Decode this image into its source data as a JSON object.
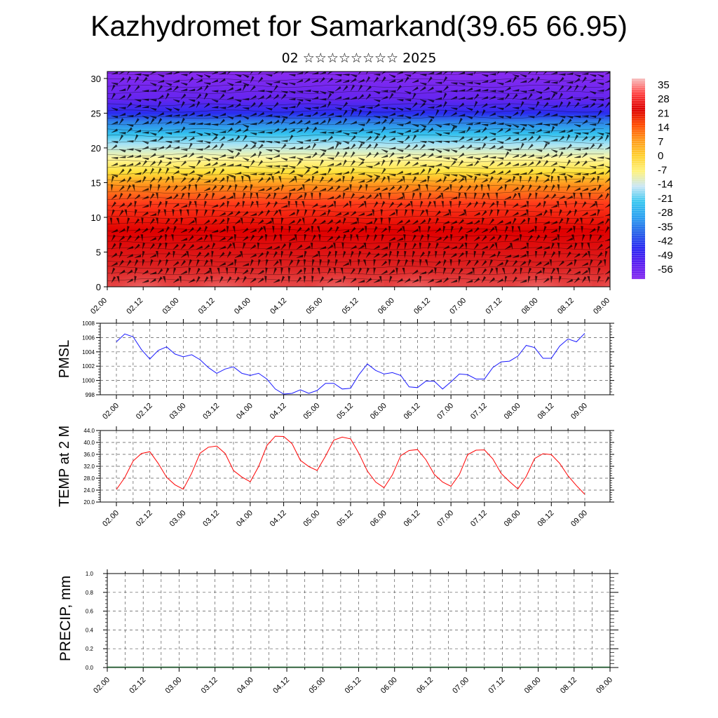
{
  "title": "Kazhydromet for Samarkand(39.65 66.95)",
  "subtitle": "02 ☆☆☆☆☆☆☆☆ 2025",
  "time_labels": [
    "02.00",
    "02.12",
    "03.00",
    "03.12",
    "04.00",
    "04.12",
    "05.00",
    "05.12",
    "06.00",
    "06.12",
    "07.00",
    "07.12",
    "08.00",
    "08.12",
    "09.00"
  ],
  "colors": {
    "pmsl_line": "#1a1aff",
    "temp_line": "#ff0000",
    "precip_line": "#1a5c2a"
  },
  "chart_data": [
    {
      "type": "heatmap",
      "name": "vertical cross-section",
      "title": "",
      "ylim": [
        0,
        31
      ],
      "y_ticks": [
        0,
        5,
        10,
        15,
        20,
        25,
        30
      ],
      "x_ticks": [
        "02.00",
        "02.12",
        "03.00",
        "03.12",
        "04.00",
        "04.12",
        "05.00",
        "05.12",
        "06.00",
        "06.12",
        "07.00",
        "07.12",
        "08.00",
        "08.12",
        "09.00"
      ],
      "colorbar_labels": [
        "35",
        "28",
        "21",
        "14",
        "7",
        "0",
        "-7",
        "-14",
        "-21",
        "-28",
        "-35",
        "-42",
        "-49",
        "-56"
      ],
      "colorbar_colors": [
        "#f7c0c0",
        "#ff4040",
        "#dc0000",
        "#ff4a00",
        "#ff9a1a",
        "#ffd030",
        "#fff27a",
        "#c9e6f5",
        "#39c7f0",
        "#2b9ff0",
        "#2460e8",
        "#2a28f2",
        "#5a1ef0",
        "#8428f0"
      ],
      "profile": [
        {
          "z": 0,
          "color": "#e64a4a"
        },
        {
          "z": 3,
          "color": "#dc2020"
        },
        {
          "z": 8,
          "color": "#e00000"
        },
        {
          "z": 12,
          "color": "#ff3a1a"
        },
        {
          "z": 14.5,
          "color": "#ff8c1a"
        },
        {
          "z": 16.5,
          "color": "#ffe23a"
        },
        {
          "z": 18.5,
          "color": "#fff7a0"
        },
        {
          "z": 20.5,
          "color": "#a9e3f5"
        },
        {
          "z": 22,
          "color": "#33c2ef"
        },
        {
          "z": 23.8,
          "color": "#2e7fe8"
        },
        {
          "z": 25,
          "color": "#2a2cf0"
        },
        {
          "z": 27,
          "color": "#6425ef"
        },
        {
          "z": 31,
          "color": "#8a2bf0"
        }
      ],
      "warm_columns": [
        0.5,
        1.6,
        3.2,
        4.3,
        6.0,
        7.2,
        8.6
      ]
    },
    {
      "type": "line",
      "name": "PMSL",
      "ylabel": "PMSL",
      "ylim": [
        998,
        1008
      ],
      "y_ticks": [
        "998",
        "1000",
        "1002",
        "1004",
        "1006",
        "1008"
      ],
      "x": [
        0,
        3,
        6,
        9,
        12,
        15,
        18,
        21,
        24,
        27,
        30,
        33,
        36,
        39,
        42,
        45,
        48,
        51,
        54,
        57,
        60,
        63,
        66,
        69,
        72,
        75,
        78,
        81,
        84,
        87,
        90,
        93,
        96,
        99,
        102,
        105,
        108,
        111,
        114,
        117,
        120,
        123,
        126,
        129,
        132,
        135,
        138,
        141,
        144,
        147,
        150,
        153,
        156,
        159,
        162,
        165,
        168
      ],
      "values": [
        1005.4,
        1006.5,
        1006.1,
        1004.3,
        1003.0,
        1004.2,
        1004.7,
        1003.7,
        1003.3,
        1003.6,
        1002.9,
        1001.8,
        1001.0,
        1001.6,
        1001.9,
        1001.0,
        1000.7,
        1001.0,
        1000.2,
        998.8,
        998.1,
        998.2,
        998.7,
        998.2,
        998.6,
        999.6,
        999.6,
        998.8,
        998.9,
        1000.8,
        1002.3,
        1001.4,
        1000.9,
        1001.1,
        1000.7,
        999.1,
        999.0,
        999.9,
        999.9,
        998.8,
        999.8,
        1000.9,
        1000.8,
        1000.2,
        1000.2,
        1001.8,
        1002.6,
        1002.7,
        1003.4,
        1004.9,
        1004.6,
        1003.1,
        1003.1,
        1004.8,
        1005.8,
        1005.4,
        1006.6
      ]
    },
    {
      "type": "line",
      "name": "TEMP at 2 M",
      "ylabel": "TEMP at 2 M",
      "ylim": [
        20,
        44
      ],
      "y_ticks": [
        "20.0",
        "24.0",
        "28.0",
        "32.0",
        "36.0",
        "40.0",
        "44.0"
      ],
      "x": [
        0,
        3,
        6,
        9,
        12,
        15,
        18,
        21,
        24,
        27,
        30,
        33,
        36,
        39,
        42,
        45,
        48,
        51,
        54,
        57,
        60,
        63,
        66,
        69,
        72,
        75,
        78,
        81,
        84,
        87,
        90,
        93,
        96,
        99,
        102,
        105,
        108,
        111,
        114,
        117,
        120,
        123,
        126,
        129,
        132,
        135,
        138,
        141,
        144,
        147,
        150,
        153,
        156,
        159,
        162,
        165,
        168
      ],
      "values": [
        24.2,
        28.2,
        33.8,
        36.3,
        36.9,
        33.0,
        28.3,
        25.8,
        24.3,
        29.7,
        36.4,
        38.4,
        38.8,
        36.3,
        30.6,
        28.4,
        26.8,
        31.9,
        39.0,
        42.1,
        42.0,
        39.6,
        34.0,
        31.9,
        30.6,
        35.4,
        40.8,
        41.8,
        41.2,
        36.3,
        30.4,
        26.7,
        24.8,
        29.1,
        35.6,
        37.3,
        37.6,
        34.2,
        29.3,
        26.7,
        25.3,
        29.2,
        35.9,
        37.4,
        37.5,
        34.5,
        29.6,
        26.9,
        24.4,
        28.6,
        34.6,
        36.2,
        35.9,
        33.0,
        28.8,
        25.5,
        22.6
      ]
    },
    {
      "type": "line",
      "name": "PRECIP",
      "ylabel": "PRECIP, mm",
      "ylim": [
        0,
        1
      ],
      "y_ticks": [
        "0.0",
        "0.2",
        "0.4",
        "0.6",
        "0.8",
        "1.0"
      ],
      "x": [
        0,
        168
      ],
      "values": [
        0,
        0
      ]
    }
  ]
}
